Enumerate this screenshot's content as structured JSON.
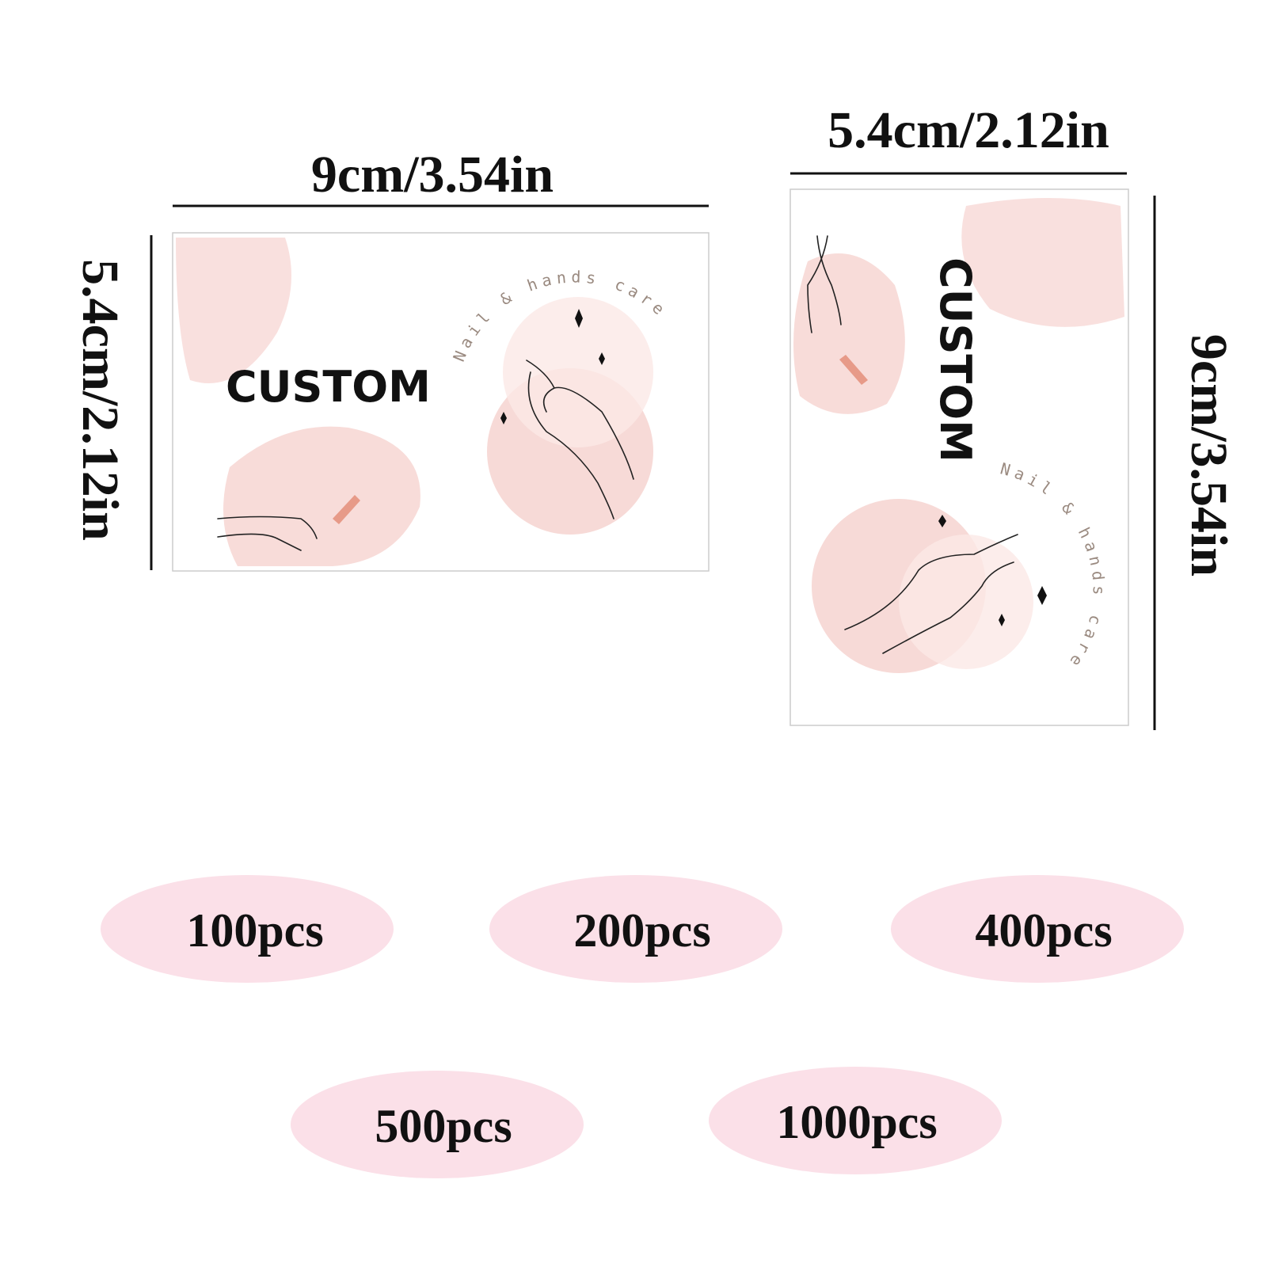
{
  "horizontal_card": {
    "width_label": "9cm/3.54in",
    "height_label": "5.4cm/2.12in",
    "text": "CUSTOM",
    "tagline": "Nail & hands care"
  },
  "vertical_card": {
    "width_label": "5.4cm/2.12in",
    "height_label": "9cm/3.54in",
    "text": "CUSTOM",
    "tagline": "Nail & hands care"
  },
  "quantities": [
    "100pcs",
    "200pcs",
    "400pcs",
    "500pcs",
    "1000pcs"
  ]
}
